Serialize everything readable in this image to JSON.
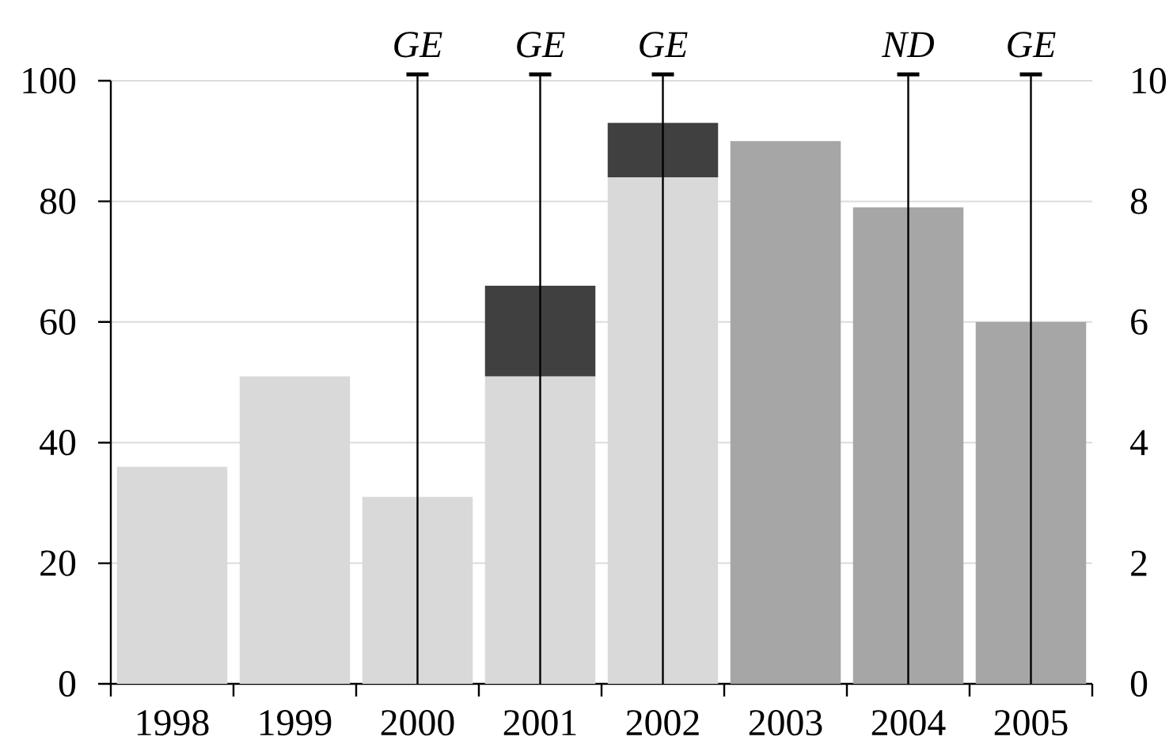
{
  "chart_data": {
    "type": "bar",
    "stacked": true,
    "categories": [
      "1998",
      "1999",
      "2000",
      "2001",
      "2002",
      "2003",
      "2004",
      "2005"
    ],
    "series": [
      {
        "color": "#d9d9d9",
        "values": [
          36,
          51,
          31,
          51,
          84,
          null,
          null,
          null
        ]
      },
      {
        "color": "#404040",
        "values": [
          null,
          null,
          null,
          15,
          9,
          null,
          null,
          null
        ]
      },
      {
        "color": "#a6a6a6",
        "values": [
          null,
          null,
          null,
          null,
          null,
          90,
          79,
          60
        ]
      }
    ],
    "ylim": [
      0,
      100
    ],
    "yticks": [
      0,
      20,
      40,
      60,
      80,
      100
    ],
    "y2lim": [
      0,
      10
    ],
    "y2ticks": [
      0,
      2,
      4,
      6,
      8,
      10
    ],
    "grid": "y",
    "ref_lines": [
      {
        "axis": "x",
        "value": "2000",
        "label": "GE"
      },
      {
        "axis": "x",
        "value": "2001",
        "label": "GE"
      },
      {
        "axis": "x",
        "value": "2002",
        "label": "GE"
      },
      {
        "axis": "x",
        "value": "2004",
        "label": "ND"
      },
      {
        "axis": "x",
        "value": "2005",
        "label": "GE"
      }
    ]
  }
}
